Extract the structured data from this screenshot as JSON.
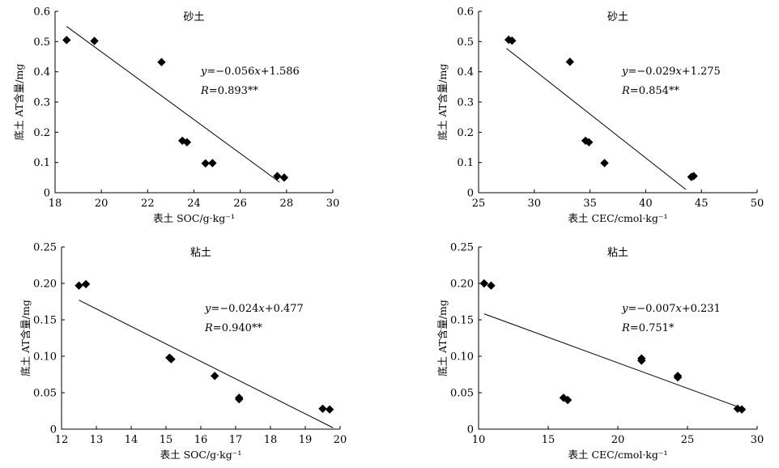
{
  "chart_data": [
    {
      "type": "scatter",
      "title": "砂土",
      "xlabel": "表土 SOC/g·kg⁻¹",
      "ylabel": "底土 AT含量/mg",
      "xlim": [
        18,
        30
      ],
      "ylim": [
        0,
        0.6
      ],
      "xticks": [
        18,
        20,
        22,
        24,
        26,
        28,
        30
      ],
      "yticks": [
        0,
        0.1,
        0.2,
        0.3,
        0.4,
        0.5,
        0.6
      ],
      "ytick_labels": [
        "0",
        "0.1",
        "0.2",
        "0.3",
        "0.4",
        "0.5",
        "0.6"
      ],
      "points": [
        [
          18.5,
          0.505
        ],
        [
          19.7,
          0.502
        ],
        [
          22.6,
          0.432
        ],
        [
          23.5,
          0.172
        ],
        [
          23.7,
          0.167
        ],
        [
          24.5,
          0.097
        ],
        [
          24.8,
          0.098
        ],
        [
          27.6,
          0.055
        ],
        [
          27.9,
          0.05
        ]
      ],
      "fit": {
        "slope": -0.056,
        "intercept": 1.586,
        "x_start": 18.5,
        "x_end": 27.7
      },
      "equation": {
        "y_prefix": "y",
        "eq_text": "=−0.056",
        "x_var": "x",
        "eq_tail": "+1.586",
        "r_prefix": "R",
        "r_text": "=0.893**"
      }
    },
    {
      "type": "scatter",
      "title": "砂土",
      "xlabel": "表土 CEC/cmol·kg⁻¹",
      "ylabel": "底土 AT含量/mg",
      "xlim": [
        25,
        50
      ],
      "ylim": [
        0,
        0.6
      ],
      "xticks": [
        25,
        30,
        35,
        40,
        45,
        50
      ],
      "yticks": [
        0,
        0.1,
        0.2,
        0.3,
        0.4,
        0.5,
        0.6
      ],
      "ytick_labels": [
        "0",
        "0.1",
        "0.2",
        "0.3",
        "0.4",
        "0.5",
        "0.6"
      ],
      "points": [
        [
          27.7,
          0.506
        ],
        [
          28.0,
          0.503
        ],
        [
          33.2,
          0.433
        ],
        [
          34.6,
          0.172
        ],
        [
          34.9,
          0.167
        ],
        [
          36.3,
          0.098
        ],
        [
          44.1,
          0.052
        ],
        [
          44.3,
          0.055
        ]
      ],
      "fit": {
        "slope": -0.029,
        "intercept": 1.275,
        "x_start": 27.5,
        "x_end": 43.6
      },
      "equation": {
        "y_prefix": "y",
        "eq_text": "=−0.029",
        "x_var": "x",
        "eq_tail": "+1.275",
        "r_prefix": "R",
        "r_text": "=0.854**"
      }
    },
    {
      "type": "scatter",
      "title": "粘土",
      "xlabel": "表土 SOC/g·kg⁻¹",
      "ylabel": "底土 AT含量/mg",
      "xlim": [
        12,
        20
      ],
      "ylim": [
        0,
        0.25
      ],
      "xticks": [
        12,
        13,
        14,
        15,
        16,
        17,
        18,
        19,
        20
      ],
      "yticks": [
        0,
        0.05,
        0.1,
        0.15,
        0.2,
        0.25
      ],
      "ytick_labels": [
        "0",
        "0.05",
        "0.10",
        "0.15",
        "0.20",
        "0.25"
      ],
      "points": [
        [
          12.5,
          0.197
        ],
        [
          12.7,
          0.199
        ],
        [
          15.1,
          0.098
        ],
        [
          15.15,
          0.096
        ],
        [
          16.4,
          0.073
        ],
        [
          17.1,
          0.043
        ],
        [
          17.1,
          0.041
        ],
        [
          19.5,
          0.028
        ],
        [
          19.7,
          0.027
        ]
      ],
      "fit": {
        "slope": -0.024,
        "intercept": 0.477,
        "x_start": 12.5,
        "x_end": 19.8
      },
      "equation": {
        "y_prefix": "y",
        "eq_text": "=−0.024",
        "x_var": "x",
        "eq_tail": "+0.477",
        "r_prefix": "R",
        "r_text": "=0.940**"
      }
    },
    {
      "type": "scatter",
      "title": "粘土",
      "xlabel": "表土 CEC/cmol·kg⁻¹",
      "ylabel": "底土 AT含量/mg",
      "xlim": [
        10,
        30
      ],
      "ylim": [
        0,
        0.25
      ],
      "xticks": [
        10,
        15,
        20,
        25,
        30
      ],
      "yticks": [
        0,
        0.05,
        0.1,
        0.15,
        0.2,
        0.25
      ],
      "ytick_labels": [
        "0",
        "0.05",
        "0.10",
        "0.15",
        "0.20",
        "0.25"
      ],
      "points": [
        [
          10.4,
          0.2
        ],
        [
          10.9,
          0.197
        ],
        [
          16.1,
          0.043
        ],
        [
          16.4,
          0.04
        ],
        [
          21.7,
          0.097
        ],
        [
          21.7,
          0.094
        ],
        [
          24.3,
          0.073
        ],
        [
          24.3,
          0.071
        ],
        [
          28.6,
          0.028
        ],
        [
          28.9,
          0.027
        ]
      ],
      "fit": {
        "slope": -0.007,
        "intercept": 0.231,
        "x_start": 10.4,
        "x_end": 28.8
      },
      "equation": {
        "y_prefix": "y",
        "eq_text": "=−0.007",
        "x_var": "x",
        "eq_tail": "+0.231",
        "r_prefix": "R",
        "r_text": "=0.751*"
      }
    }
  ]
}
